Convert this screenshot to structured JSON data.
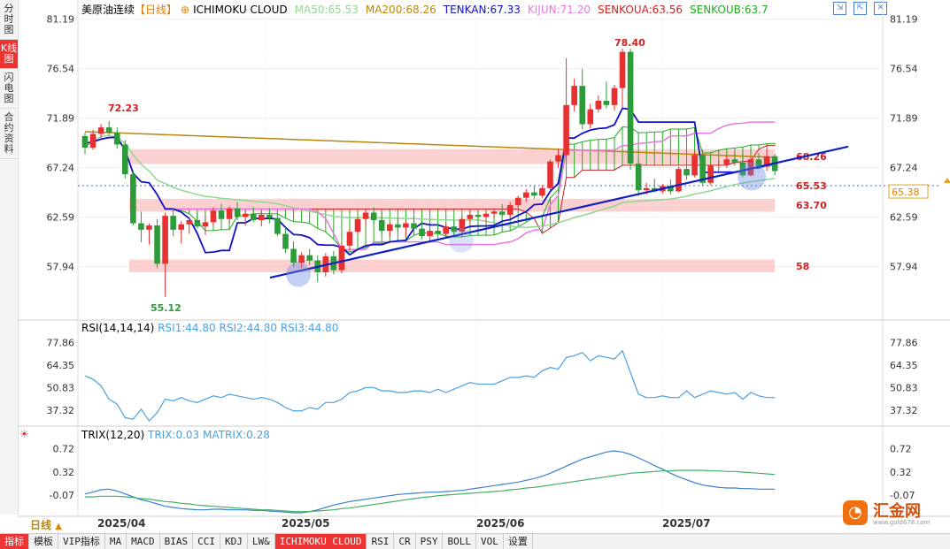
{
  "sidebar": {
    "tabs": [
      "分时图",
      "K线图",
      "闪电图",
      "合约资料"
    ],
    "active_index": 1
  },
  "header": {
    "symbol": "美原油连续",
    "period_tag": "【日线】",
    "indicator": "ICHIMOKU CLOUD",
    "ma50": "MA50:65.53",
    "ma200": "MA200:68.26",
    "tenkan": "TENKAN:67.33",
    "kijun": "KIJUN:71.20",
    "senkoua": "SENKOUA:63.56",
    "senkoub": "SENKOUB:63.7"
  },
  "rsi_header": {
    "name": "RSI(14,14,14)",
    "rsi1": "RSI1:44.80",
    "rsi2": "RSI2:44.80",
    "rsi3": "RSI3:44.80"
  },
  "trix_header": {
    "name": "TRIX(12,20)",
    "trix": "TRIX:0.03",
    "matrix": "MATRIX:0.28"
  },
  "period_label": "日线",
  "dates": [
    "2025/04",
    "2025/05",
    "2025/06",
    "2025/07"
  ],
  "toolbar": [
    "指标",
    "模板",
    "VIP指标",
    "MA",
    "MACD",
    "BIAS",
    "CCI",
    "KDJ",
    "LW&",
    "ICHIMOKU CLOUD",
    "RSI",
    "CR",
    "PSY",
    "BOLL",
    "VOL",
    "设置"
  ],
  "toolbar_active": [
    0,
    9
  ],
  "brand": {
    "name": "汇金网",
    "url": "www.gold678.com"
  },
  "colors": {
    "up": "#e83030",
    "down": "#2e9b3a",
    "tenkan": "#1010c8",
    "kijun": "#e878e0",
    "ma50": "#90d890",
    "ma200": "#b8860b",
    "cloud": "#22aa22",
    "band": "#f8c0c0"
  },
  "chart_data": [
    {
      "type": "candlestick",
      "title": "美原油连续",
      "ylim": [
        53.5,
        81.8
      ],
      "y_ticks": [
        81.19,
        76.54,
        71.89,
        67.24,
        62.59,
        57.94
      ],
      "current_price": "65.38",
      "annotations": {
        "high": "78.40",
        "low": "55.12",
        "early_high": "72.23"
      },
      "levels": [
        {
          "value": 68.26,
          "label": "68.26"
        },
        {
          "value": 65.53,
          "label": "65.53"
        },
        {
          "value": 63.7,
          "label": "63.70"
        },
        {
          "value": 58,
          "label": "58"
        }
      ],
      "ohlc": [
        [
          70.2,
          70.5,
          68.5,
          69.1
        ],
        [
          69.1,
          70.8,
          68.9,
          70.4
        ],
        [
          70.4,
          71.3,
          70.0,
          71.0
        ],
        [
          71.0,
          71.6,
          70.3,
          70.5
        ],
        [
          70.5,
          71.0,
          69.0,
          69.4
        ],
        [
          69.4,
          69.8,
          66.2,
          66.6
        ],
        [
          66.6,
          67.0,
          61.8,
          62.0
        ],
        [
          62.0,
          63.1,
          60.2,
          61.4
        ],
        [
          61.4,
          62.0,
          60.0,
          61.8
        ],
        [
          61.8,
          62.4,
          57.8,
          58.2
        ],
        [
          58.2,
          63.0,
          55.1,
          62.7
        ],
        [
          62.7,
          63.4,
          60.8,
          61.4
        ],
        [
          61.4,
          62.2,
          60.1,
          61.9
        ],
        [
          61.9,
          62.5,
          61.0,
          62.3
        ],
        [
          62.3,
          63.0,
          61.5,
          61.7
        ],
        [
          61.7,
          62.8,
          60.9,
          62.1
        ],
        [
          62.1,
          63.5,
          61.8,
          63.2
        ],
        [
          63.2,
          63.8,
          61.9,
          62.4
        ],
        [
          62.4,
          63.6,
          62.0,
          63.4
        ],
        [
          63.4,
          64.0,
          62.3,
          62.6
        ],
        [
          62.6,
          63.2,
          61.8,
          62.9
        ],
        [
          62.9,
          63.5,
          62.1,
          62.3
        ],
        [
          62.3,
          63.1,
          61.7,
          62.8
        ],
        [
          62.8,
          63.4,
          62.0,
          62.5
        ],
        [
          62.5,
          63.0,
          60.8,
          61.0
        ],
        [
          61.0,
          61.6,
          59.2,
          59.6
        ],
        [
          59.6,
          60.3,
          57.9,
          58.3
        ],
        [
          58.3,
          59.3,
          57.8,
          59.0
        ],
        [
          59.0,
          59.6,
          58.1,
          58.5
        ],
        [
          58.5,
          59.0,
          56.5,
          57.4
        ],
        [
          57.4,
          59.2,
          57.0,
          58.9
        ],
        [
          58.9,
          59.4,
          57.2,
          57.6
        ],
        [
          57.6,
          60.2,
          57.3,
          59.9
        ],
        [
          59.9,
          61.5,
          59.5,
          61.2
        ],
        [
          61.2,
          62.6,
          60.9,
          62.4
        ],
        [
          62.4,
          63.3,
          61.8,
          63.0
        ],
        [
          63.0,
          63.5,
          62.0,
          62.3
        ],
        [
          62.3,
          63.0,
          61.0,
          61.3
        ],
        [
          61.3,
          62.1,
          60.7,
          61.9
        ],
        [
          61.9,
          62.5,
          61.2,
          61.6
        ],
        [
          61.6,
          62.3,
          60.8,
          62.0
        ],
        [
          62.0,
          62.7,
          61.3,
          61.5
        ],
        [
          61.5,
          62.2,
          60.5,
          60.8
        ],
        [
          60.8,
          61.6,
          60.2,
          61.3
        ],
        [
          61.3,
          61.9,
          60.6,
          61.0
        ],
        [
          61.0,
          62.0,
          60.7,
          61.7
        ],
        [
          61.7,
          62.3,
          60.9,
          61.2
        ],
        [
          61.2,
          62.6,
          61.0,
          62.4
        ],
        [
          62.4,
          63.2,
          62.0,
          62.8
        ],
        [
          62.8,
          63.3,
          62.2,
          62.6
        ],
        [
          62.6,
          63.0,
          62.0,
          62.9
        ],
        [
          62.9,
          63.4,
          62.5,
          63.1
        ],
        [
          63.1,
          63.8,
          62.6,
          62.8
        ],
        [
          62.8,
          64.0,
          62.5,
          63.7
        ],
        [
          63.7,
          64.6,
          63.4,
          64.4
        ],
        [
          64.4,
          65.2,
          64.0,
          64.9
        ],
        [
          64.9,
          65.5,
          64.3,
          64.6
        ],
        [
          64.6,
          65.6,
          64.4,
          65.3
        ],
        [
          65.3,
          68.0,
          65.0,
          67.8
        ],
        [
          67.8,
          69.0,
          67.2,
          68.4
        ],
        [
          68.4,
          77.5,
          68.2,
          73.1
        ],
        [
          73.1,
          75.6,
          72.5,
          74.9
        ],
        [
          74.9,
          76.5,
          70.8,
          71.3
        ],
        [
          71.3,
          73.2,
          70.9,
          72.7
        ],
        [
          72.7,
          74.0,
          72.4,
          73.5
        ],
        [
          73.5,
          75.3,
          72.8,
          73.1
        ],
        [
          73.1,
          75.0,
          72.6,
          74.7
        ],
        [
          74.7,
          78.4,
          72.8,
          78.1
        ],
        [
          78.1,
          78.4,
          67.0,
          67.6
        ],
        [
          67.6,
          67.9,
          64.6,
          65.1
        ],
        [
          65.1,
          65.8,
          64.7,
          65.3
        ],
        [
          65.3,
          66.2,
          64.9,
          65.0
        ],
        [
          65.0,
          65.7,
          64.8,
          65.5
        ],
        [
          65.5,
          66.1,
          64.7,
          65.0
        ],
        [
          65.0,
          67.3,
          64.9,
          67.1
        ],
        [
          67.1,
          67.8,
          66.1,
          66.5
        ],
        [
          66.5,
          68.8,
          66.3,
          68.4
        ],
        [
          68.4,
          68.9,
          65.5,
          65.8
        ],
        [
          65.8,
          67.6,
          65.6,
          67.4
        ],
        [
          67.4,
          67.9,
          66.9,
          67.5
        ],
        [
          67.5,
          68.4,
          67.2,
          68.0
        ],
        [
          68.0,
          68.5,
          67.4,
          67.7
        ],
        [
          67.7,
          68.6,
          66.3,
          66.5
        ],
        [
          66.5,
          68.2,
          66.4,
          68.0
        ],
        [
          68.0,
          68.6,
          67.1,
          67.3
        ],
        [
          67.3,
          69.4,
          66.9,
          68.3
        ],
        [
          68.3,
          68.5,
          66.5,
          66.9
        ]
      ]
    },
    {
      "type": "line",
      "title": "RSI(14,14,14)",
      "ylim": [
        30,
        84
      ],
      "y_ticks": [
        77.86,
        64.35,
        50.83,
        37.32
      ],
      "series": [
        {
          "name": "RSI1",
          "values": [
            58,
            56,
            52,
            44,
            41,
            33,
            32,
            38,
            31,
            36,
            44,
            43,
            45,
            43,
            42,
            44,
            46,
            45,
            47,
            46,
            45,
            44,
            45,
            44,
            42,
            39,
            37,
            37,
            39,
            38,
            42,
            42,
            44,
            48,
            49,
            51,
            51,
            49,
            49,
            48,
            48,
            49,
            49,
            48,
            50,
            48,
            50,
            52,
            54,
            53,
            53,
            53,
            55,
            57,
            57,
            58,
            57,
            61,
            63,
            62,
            69,
            70,
            72,
            67,
            70,
            69,
            68,
            73,
            60,
            47,
            45,
            45,
            46,
            45,
            45,
            49,
            45,
            47,
            49,
            48,
            47,
            48,
            44,
            48,
            46,
            45,
            45
          ]
        }
      ]
    },
    {
      "type": "line",
      "title": "TRIX(12,20)",
      "ylim": [
        -0.4,
        0.95
      ],
      "y_ticks": [
        0.72,
        0.32,
        -0.07
      ],
      "series": [
        {
          "name": "TRIX",
          "values": [
            -0.05,
            -0.02,
            0.02,
            0.03,
            0.0,
            -0.05,
            -0.1,
            -0.15,
            -0.18,
            -0.22,
            -0.26,
            -0.28,
            -0.3,
            -0.31,
            -0.32,
            -0.32,
            -0.31,
            -0.31,
            -0.32,
            -0.32,
            -0.32,
            -0.33,
            -0.33,
            -0.34,
            -0.35,
            -0.36,
            -0.37,
            -0.37,
            -0.35,
            -0.32,
            -0.28,
            -0.24,
            -0.21,
            -0.18,
            -0.16,
            -0.14,
            -0.12,
            -0.1,
            -0.08,
            -0.06,
            -0.05,
            -0.04,
            -0.03,
            -0.02,
            -0.02,
            -0.01,
            0.0,
            0.01,
            0.03,
            0.05,
            0.07,
            0.09,
            0.11,
            0.13,
            0.15,
            0.18,
            0.21,
            0.25,
            0.3,
            0.36,
            0.42,
            0.48,
            0.54,
            0.58,
            0.62,
            0.66,
            0.68,
            0.66,
            0.62,
            0.56,
            0.5,
            0.43,
            0.37,
            0.3,
            0.24,
            0.19,
            0.14,
            0.1,
            0.08,
            0.06,
            0.05,
            0.05,
            0.04,
            0.04,
            0.03,
            0.03,
            0.03
          ]
        },
        {
          "name": "MATRIX",
          "values": [
            -0.1,
            -0.1,
            -0.09,
            -0.09,
            -0.09,
            -0.1,
            -0.11,
            -0.13,
            -0.14,
            -0.16,
            -0.18,
            -0.19,
            -0.21,
            -0.22,
            -0.24,
            -0.25,
            -0.26,
            -0.27,
            -0.28,
            -0.29,
            -0.3,
            -0.31,
            -0.32,
            -0.32,
            -0.33,
            -0.34,
            -0.35,
            -0.35,
            -0.35,
            -0.34,
            -0.33,
            -0.32,
            -0.3,
            -0.29,
            -0.27,
            -0.25,
            -0.23,
            -0.21,
            -0.19,
            -0.17,
            -0.15,
            -0.13,
            -0.11,
            -0.1,
            -0.08,
            -0.07,
            -0.06,
            -0.05,
            -0.04,
            -0.03,
            -0.02,
            -0.01,
            0.0,
            0.02,
            0.03,
            0.05,
            0.06,
            0.08,
            0.1,
            0.12,
            0.14,
            0.16,
            0.18,
            0.2,
            0.22,
            0.24,
            0.26,
            0.28,
            0.3,
            0.31,
            0.32,
            0.33,
            0.34,
            0.34,
            0.35,
            0.35,
            0.35,
            0.35,
            0.34,
            0.34,
            0.33,
            0.33,
            0.32,
            0.31,
            0.3,
            0.29,
            0.28
          ]
        }
      ]
    }
  ]
}
